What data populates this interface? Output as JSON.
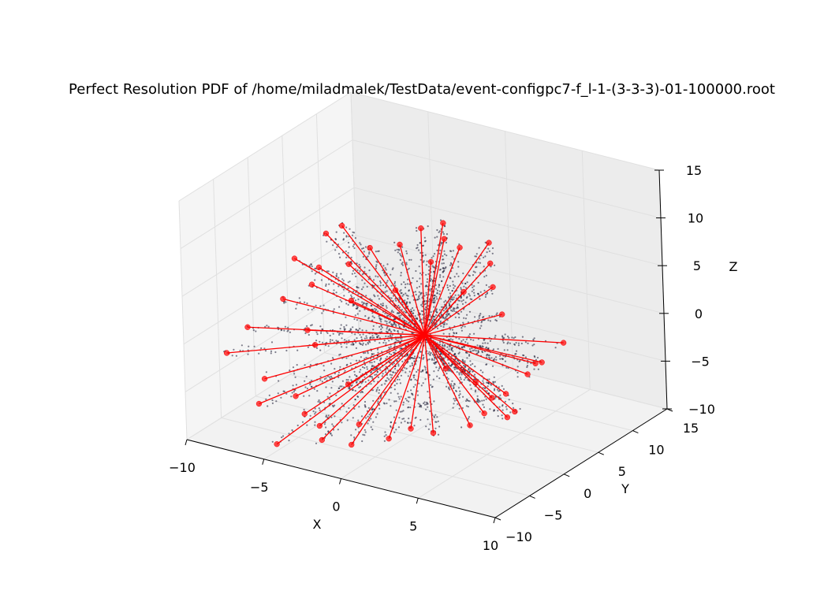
{
  "chart_data": {
    "type": "scatter",
    "projection": "3d",
    "title": "Perfect Resolution PDF of /home/miladmalek/TestData/event-configpc7-f_l-1-(3-3-3)-01-100000.root",
    "xlabel": "X",
    "ylabel": "Y",
    "zlabel": "Z",
    "xlim": [
      -10,
      10
    ],
    "ylim": [
      -10,
      15
    ],
    "zlim": [
      -10,
      15
    ],
    "xticks": [
      -10,
      -5,
      0,
      5,
      10
    ],
    "yticks": [
      -10,
      -5,
      0,
      5,
      10,
      15
    ],
    "zticks": [
      -10,
      -5,
      0,
      5,
      10,
      15
    ],
    "xtick_labels": [
      "−10",
      "−5",
      "0",
      "5",
      "10"
    ],
    "ytick_labels": [
      "−10",
      "−5",
      "0",
      "5",
      "10",
      "15"
    ],
    "ztick_labels": [
      "−10",
      "−5",
      "0",
      "5",
      "10",
      "15"
    ],
    "grid": true,
    "vertex": [
      0.5,
      1.5,
      0
    ],
    "series": [
      {
        "kind": "pdf-points",
        "color": "#1a1a33"
      },
      {
        "kind": "tracks",
        "color": "#ff0000"
      }
    ],
    "track_endpoints": [
      [
        -7.8,
        6,
        5.2
      ],
      [
        -7.2,
        7,
        5.8
      ],
      [
        -6.5,
        2,
        4
      ],
      [
        -5,
        3,
        4.5
      ],
      [
        -4.5,
        5,
        5.5
      ],
      [
        -3,
        6,
        6
      ],
      [
        -2.5,
        8,
        7
      ],
      [
        -1.5,
        9,
        7.5
      ],
      [
        -1,
        8,
        6.5
      ],
      [
        0,
        8,
        6
      ],
      [
        1,
        10,
        6
      ],
      [
        1.5,
        9,
        4.5
      ],
      [
        -8,
        0,
        1
      ],
      [
        -9,
        -3,
        -1
      ],
      [
        -9.5,
        -5,
        -3
      ],
      [
        -9,
        4,
        3
      ],
      [
        -7,
        2,
        2
      ],
      [
        -6,
        0,
        -3
      ],
      [
        -8,
        -3,
        -6
      ],
      [
        -7.5,
        -5,
        -7.5
      ],
      [
        -6,
        -3,
        -7
      ],
      [
        -5,
        -4,
        -8
      ],
      [
        -4.5,
        -3,
        -9.5
      ],
      [
        -2,
        -4,
        -10
      ],
      [
        0,
        -3,
        -9
      ],
      [
        1,
        -2,
        -8
      ],
      [
        2,
        -1,
        -8.5
      ],
      [
        3.5,
        1,
        -8
      ],
      [
        4,
        2,
        -7
      ],
      [
        5,
        3,
        -5
      ],
      [
        6,
        4,
        -3
      ],
      [
        7,
        3,
        -1
      ],
      [
        5,
        1,
        -4.5
      ],
      [
        3.5,
        2,
        -4
      ],
      [
        6,
        2,
        -6
      ],
      [
        5.5,
        2,
        -6.8
      ],
      [
        2,
        4,
        4
      ],
      [
        3,
        6,
        4
      ],
      [
        -3,
        -6,
        -9
      ],
      [
        -5.5,
        -7,
        -10
      ],
      [
        -1,
        6,
        5
      ],
      [
        -2,
        3,
        3
      ],
      [
        -4,
        1,
        2
      ],
      [
        -6,
        -1,
        -1
      ],
      [
        -3,
        -2,
        -5
      ],
      [
        -1,
        -5,
        -7
      ],
      [
        4,
        5,
        2
      ],
      [
        2.5,
        0,
        -2
      ],
      [
        6.5,
        5,
        -2
      ],
      [
        7.5,
        6,
        0
      ]
    ]
  }
}
